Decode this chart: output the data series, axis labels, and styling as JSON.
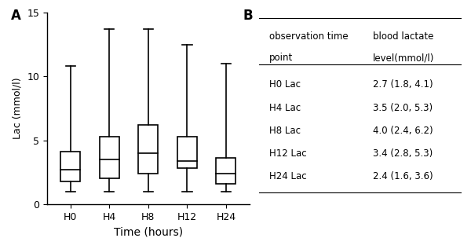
{
  "box_data": [
    {
      "label": "H0",
      "median": 2.7,
      "q1": 1.8,
      "q3": 4.1,
      "whisker_low": 1.0,
      "whisker_high": 10.8
    },
    {
      "label": "H4",
      "median": 3.5,
      "q1": 2.0,
      "q3": 5.3,
      "whisker_low": 1.0,
      "whisker_high": 13.7
    },
    {
      "label": "H8",
      "median": 4.0,
      "q1": 2.4,
      "q3": 6.2,
      "whisker_low": 1.0,
      "whisker_high": 13.7
    },
    {
      "label": "H12",
      "median": 3.4,
      "q1": 2.8,
      "q3": 5.3,
      "whisker_low": 1.0,
      "whisker_high": 12.5
    },
    {
      "label": "H24",
      "median": 2.4,
      "q1": 1.6,
      "q3": 3.6,
      "whisker_low": 1.0,
      "whisker_high": 11.0
    }
  ],
  "ylabel": "Lac (mmol/l)",
  "xlabel": "Time (hours)",
  "ylim": [
    0,
    15
  ],
  "yticks": [
    0,
    5,
    10,
    15
  ],
  "panel_a_label": "A",
  "panel_b_label": "B",
  "table_header_col1": "observation time",
  "table_header_col2": "blood lactate",
  "table_subheader_col1": "point",
  "table_subheader_col2": "level(mmol/l)",
  "table_rows": [
    [
      "H0 Lac",
      "2.7 (1.8, 4.1)"
    ],
    [
      "H4 Lac",
      "3.5 (2.0, 5.3)"
    ],
    [
      "H8 Lac",
      "4.0 (2.4, 6.2)"
    ],
    [
      "H12 Lac",
      "3.4 (2.8, 5.3)"
    ],
    [
      "H24 Lac",
      "2.4 (1.6, 3.6)"
    ]
  ],
  "box_color": "#ffffff",
  "box_edge_color": "#000000",
  "median_color": "#000000",
  "whisker_color": "#000000",
  "cap_color": "#000000",
  "background_color": "#ffffff",
  "text_color": "#000000",
  "font_size": 9,
  "box_width": 0.5
}
